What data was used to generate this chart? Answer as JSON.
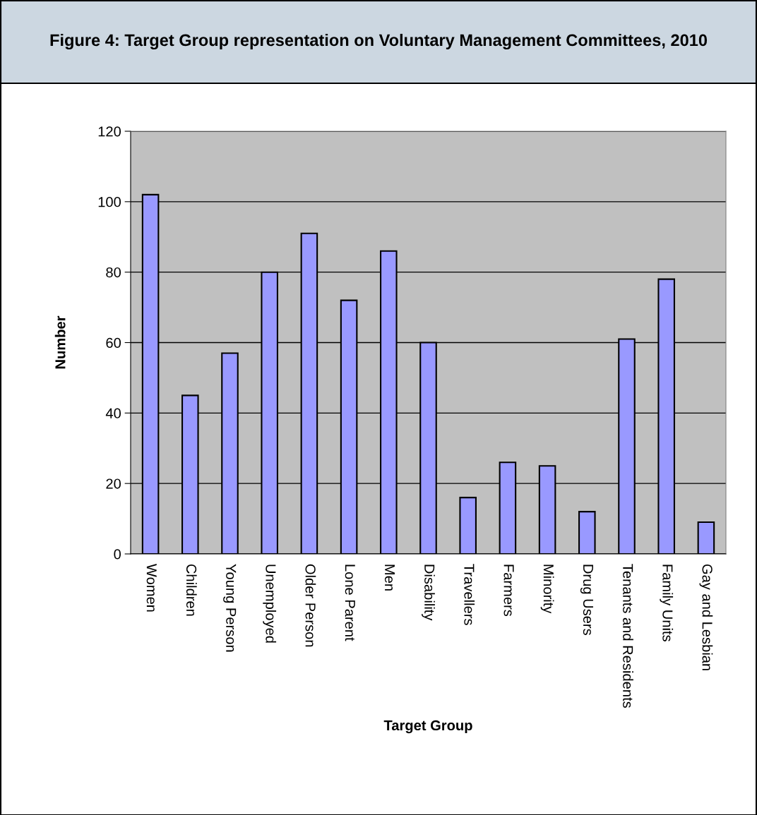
{
  "chart_data": {
    "type": "bar",
    "title": "Figure 4: Target Group representation on Voluntary Management Committees, 2010",
    "xlabel": "Target Group",
    "ylabel": "Number",
    "categories": [
      "Women",
      "Children",
      "Young Person",
      "Unemployed",
      "Older Person",
      "Lone Parent",
      "Men",
      "Disability",
      "Travellers",
      "Farmers",
      "Minority",
      "Drug Users",
      "Tenants and Residents",
      "Family Units",
      "Gay and Lesbian"
    ],
    "values": [
      102,
      45,
      57,
      80,
      91,
      72,
      86,
      60,
      16,
      26,
      25,
      12,
      61,
      78,
      9
    ],
    "color": "#9999ff",
    "ylim": [
      0,
      120
    ],
    "yticks": [
      0,
      20,
      40,
      60,
      80,
      100,
      120
    ],
    "grid": "y",
    "legend": false
  }
}
